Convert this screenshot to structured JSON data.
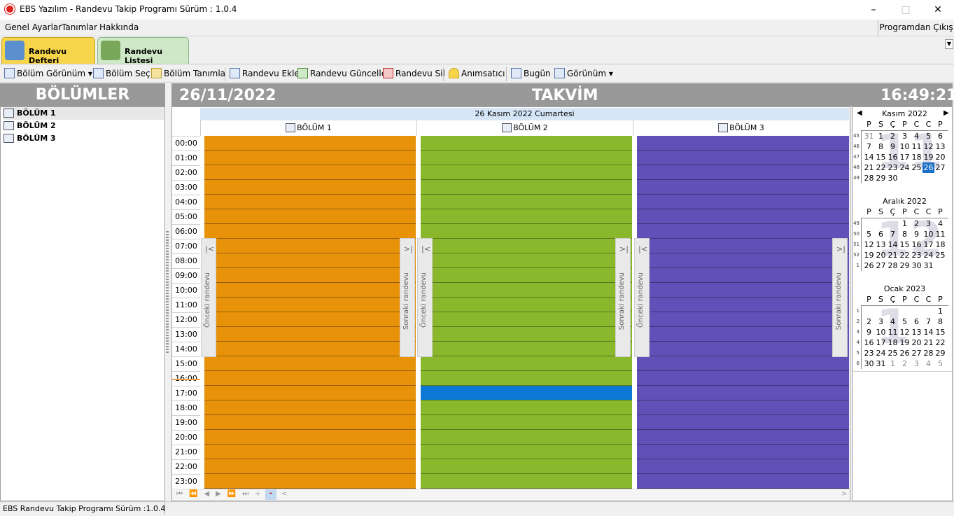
{
  "window": {
    "title": "EBS Yazılım - Randevu Takip Programı Sürüm : 1.0.4"
  },
  "menu": {
    "items": [
      "Genel Ayarlar",
      "Tanımlar",
      "Hakkında"
    ],
    "exit": "Programdan Çıkış"
  },
  "tabs": [
    {
      "label": "Randevu Defteri",
      "active": true
    },
    {
      "label": "Randevu Listesi",
      "active": false
    }
  ],
  "toolbar": {
    "items": [
      "Bölüm Görünüm",
      "Bölüm Seç",
      "Bölüm Tanımla",
      "Randevu Ekle",
      "Randevu Güncelle",
      "Randevu Sil",
      "Anımsatıcı",
      "Bugün",
      "Görünüm"
    ]
  },
  "left": {
    "title": "BÖLÜMLER",
    "sections": [
      "BÖLÜM 1",
      "BÖLÜM 2",
      "BÖLÜM 3"
    ]
  },
  "header": {
    "date": "26/11/2022",
    "title": "TAKVİM",
    "time": "16:49:21"
  },
  "calendar": {
    "date_label": "26 Kasım 2022 Cumartesi",
    "columns": [
      {
        "name": "BÖLÜM 1",
        "color": "#e8920a"
      },
      {
        "name": "BÖLÜM 2",
        "color": "#8ab82c"
      },
      {
        "name": "BÖLÜM 3",
        "color": "#6050b8"
      }
    ],
    "hours": [
      "00:00",
      "01:00",
      "02:00",
      "03:00",
      "04:00",
      "05:00",
      "06:00",
      "07:00",
      "08:00",
      "09:00",
      "10:00",
      "11:00",
      "12:00",
      "13:00",
      "14:00",
      "15:00",
      "16:00",
      "17:00",
      "18:00",
      "19:00",
      "20:00",
      "21:00",
      "22:00",
      "23:00"
    ],
    "prev_label": "Önceki randevu",
    "next_label": "Sonraki randevu",
    "selected_slot": {
      "column": "BÖLÜM 2",
      "time": "17:00",
      "color": "#0a78d4"
    }
  },
  "mini_calendars": {
    "weekdays": [
      "P",
      "S",
      "Ç",
      "P",
      "C",
      "C",
      "P"
    ],
    "months": [
      {
        "label": "Kasım 2022",
        "big": "11",
        "weeks": [
          "45",
          "46",
          "47",
          "48",
          "49"
        ],
        "days": [
          [
            "31",
            "1",
            "2",
            "3",
            "4",
            "5",
            "6"
          ],
          [
            "7",
            "8",
            "9",
            "10",
            "11",
            "12",
            "13"
          ],
          [
            "14",
            "15",
            "16",
            "17",
            "18",
            "19",
            "20"
          ],
          [
            "21",
            "22",
            "23",
            "24",
            "25",
            "26",
            "27"
          ],
          [
            "28",
            "29",
            "30",
            "",
            "",
            "",
            ""
          ]
        ],
        "today": "26"
      },
      {
        "label": "Aralık 2022",
        "big": "12",
        "weeks": [
          "49",
          "50",
          "51",
          "52",
          "1"
        ],
        "days": [
          [
            "",
            "",
            "",
            "1",
            "2",
            "3",
            "4"
          ],
          [
            "5",
            "6",
            "7",
            "8",
            "9",
            "10",
            "11"
          ],
          [
            "12",
            "13",
            "14",
            "15",
            "16",
            "17",
            "18"
          ],
          [
            "19",
            "20",
            "21",
            "22",
            "23",
            "24",
            "25"
          ],
          [
            "26",
            "27",
            "28",
            "29",
            "30",
            "31",
            ""
          ]
        ]
      },
      {
        "label": "Ocak 2023",
        "big": "1",
        "weeks": [
          "1",
          "2",
          "3",
          "4",
          "5",
          "6"
        ],
        "days": [
          [
            "",
            "",
            "",
            "",
            "",
            "",
            "1"
          ],
          [
            "2",
            "3",
            "4",
            "5",
            "6",
            "7",
            "8"
          ],
          [
            "9",
            "10",
            "11",
            "12",
            "13",
            "14",
            "15"
          ],
          [
            "16",
            "17",
            "18",
            "19",
            "20",
            "21",
            "22"
          ],
          [
            "23",
            "24",
            "25",
            "26",
            "27",
            "28",
            "29"
          ],
          [
            "30",
            "31",
            "1",
            "2",
            "3",
            "4",
            "5"
          ]
        ]
      }
    ]
  },
  "status": {
    "text": "EBS Randevu Takip  Programı Sürüm :1.0.4"
  }
}
